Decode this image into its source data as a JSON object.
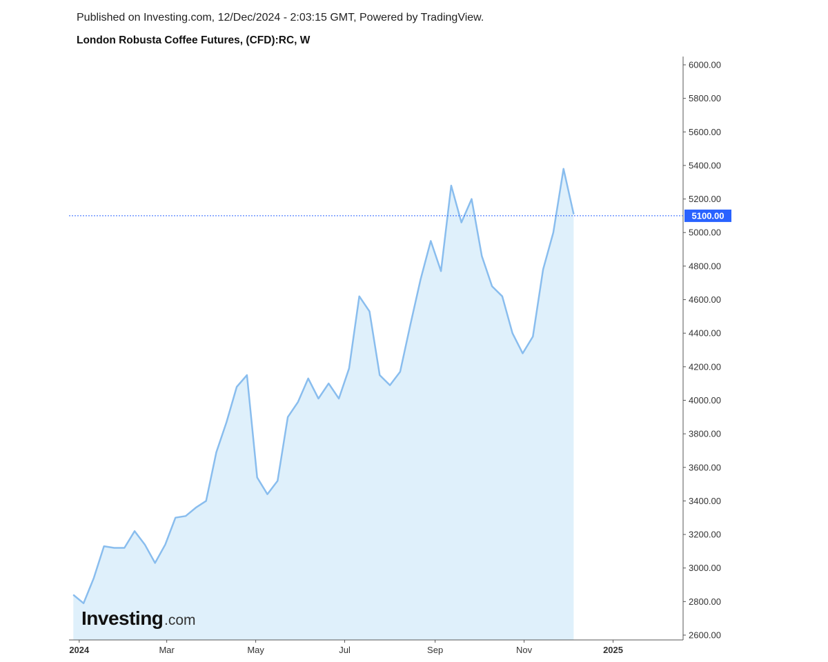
{
  "header": {
    "published": "Published on Investing.com, 12/Dec/2024 - 2:03:15 GMT, Powered by TradingView.",
    "title": "London Robusta Coffee Futures, (CFD):RC, W"
  },
  "logo": {
    "main": "Investing",
    "sub": ".com"
  },
  "current_price_label": "5100.00",
  "colors": {
    "line": "#89bdee",
    "fill": "#dff0fb",
    "price_line": "#2962ff",
    "price_label_bg": "#2962ff",
    "axis": "#555555"
  },
  "chart_data": {
    "type": "area",
    "title": "London Robusta Coffee Futures, (CFD):RC, W",
    "xlabel": "",
    "ylabel": "",
    "ylim": [
      2600,
      6000
    ],
    "x_range": [
      "2023-12-25",
      "2025-02-18"
    ],
    "yticks": [
      2600,
      2800,
      3000,
      3200,
      3400,
      3600,
      3800,
      4000,
      4200,
      4400,
      4600,
      4800,
      5000,
      5200,
      5400,
      5600,
      5800,
      6000
    ],
    "ytick_labels": [
      "2600.00",
      "2800.00",
      "3000.00",
      "3200.00",
      "3400.00",
      "3600.00",
      "3800.00",
      "4000.00",
      "4200.00",
      "4400.00",
      "4600.00",
      "4800.00",
      "5000.00",
      "5200.00",
      "5400.00",
      "5600.00",
      "5800.00",
      "6000.00"
    ],
    "xticks": [
      {
        "label": "2024",
        "date": "2024-01-01",
        "bold": true
      },
      {
        "label": "Mar",
        "date": "2024-03-01",
        "bold": false
      },
      {
        "label": "May",
        "date": "2024-05-01",
        "bold": false
      },
      {
        "label": "Jul",
        "date": "2024-07-01",
        "bold": false
      },
      {
        "label": "Sep",
        "date": "2024-09-01",
        "bold": false
      },
      {
        "label": "Nov",
        "date": "2024-11-01",
        "bold": false
      },
      {
        "label": "2025",
        "date": "2025-01-01",
        "bold": true
      }
    ],
    "current_price": 5100,
    "x": [
      "2023-12-28",
      "2024-01-04",
      "2024-01-11",
      "2024-01-18",
      "2024-01-25",
      "2024-02-01",
      "2024-02-08",
      "2024-02-15",
      "2024-02-22",
      "2024-02-29",
      "2024-03-07",
      "2024-03-14",
      "2024-03-21",
      "2024-03-28",
      "2024-04-04",
      "2024-04-11",
      "2024-04-18",
      "2024-04-25",
      "2024-05-02",
      "2024-05-09",
      "2024-05-16",
      "2024-05-23",
      "2024-05-30",
      "2024-06-06",
      "2024-06-13",
      "2024-06-20",
      "2024-06-27",
      "2024-07-04",
      "2024-07-11",
      "2024-07-18",
      "2024-07-25",
      "2024-08-01",
      "2024-08-08",
      "2024-08-15",
      "2024-08-22",
      "2024-08-29",
      "2024-09-05",
      "2024-09-12",
      "2024-09-19",
      "2024-09-26",
      "2024-10-03",
      "2024-10-10",
      "2024-10-17",
      "2024-10-24",
      "2024-10-31",
      "2024-11-07",
      "2024-11-14",
      "2024-11-21",
      "2024-11-28",
      "2024-12-05"
    ],
    "series": [
      {
        "values": [
          2840,
          2790,
          2940,
          3130,
          3120,
          3120,
          3220,
          3140,
          3030,
          3140,
          3300,
          3310,
          3360,
          3400,
          3690,
          3870,
          4080,
          4150,
          3540,
          3440,
          3520,
          3900,
          3990,
          4130,
          4010,
          4100,
          4010,
          4190,
          4620,
          4530,
          4150,
          4090,
          4170,
          4450,
          4720,
          4950,
          4770,
          5280,
          5060,
          5200,
          4860,
          4680,
          4620,
          4400,
          4280,
          4380,
          4780,
          5000,
          5380,
          5110
        ]
      }
    ]
  }
}
